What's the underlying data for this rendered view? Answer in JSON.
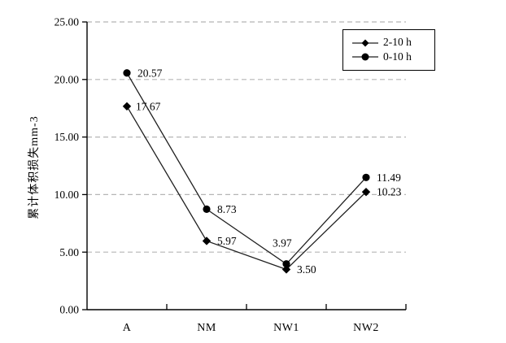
{
  "chart_data": {
    "type": "line",
    "categories": [
      "A",
      "NM",
      "NW1",
      "NW2"
    ],
    "series": [
      {
        "name": "2-10 h",
        "marker": "diamond",
        "values": [
          17.67,
          5.97,
          3.5,
          10.23
        ],
        "labels": [
          "17.67",
          "5.97",
          "3.50",
          "10.23"
        ]
      },
      {
        "name": "0-10 h",
        "marker": "circle",
        "values": [
          20.57,
          8.73,
          3.97,
          11.49
        ],
        "labels": [
          "20.57",
          "8.73",
          "3.97",
          "11.49"
        ]
      }
    ],
    "title": "",
    "xlabel": "",
    "ylabel": "累计体积损失mm-3",
    "ylim": [
      0,
      25
    ],
    "ytick_step": 5,
    "ytick_labels": [
      "0.00",
      "5.00",
      "10.00",
      "15.00",
      "20.00",
      "25.00"
    ],
    "grid": "horizontal-dashed",
    "legend_position": "top-right",
    "colors": {
      "line": "#1f1f1f",
      "marker": "#000000",
      "gridline": "#b5b5b5",
      "axis": "#000000",
      "text": "#000000",
      "background": "#ffffff"
    },
    "label_offsets": {
      "2-10 h": [
        [
          11,
          0
        ],
        [
          13,
          0
        ],
        [
          13,
          0
        ],
        [
          13,
          0
        ]
      ],
      "0-10 h": [
        [
          13,
          0
        ],
        [
          13,
          0
        ],
        [
          -17,
          -26
        ],
        [
          13,
          0
        ]
      ]
    }
  }
}
